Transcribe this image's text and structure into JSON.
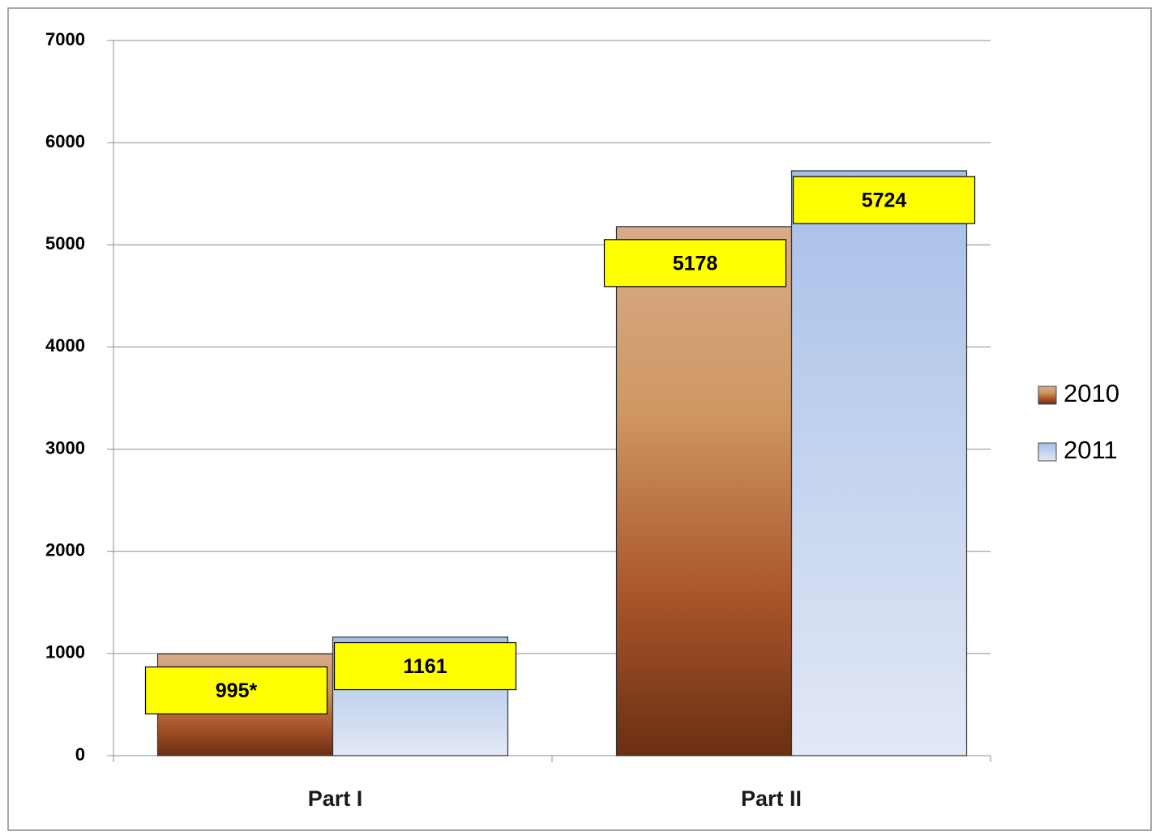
{
  "chart_data": {
    "type": "bar",
    "categories": [
      "Part I",
      "Part II"
    ],
    "series": [
      {
        "name": "2010",
        "color": "#a9552a",
        "values": [
          995,
          5178
        ],
        "value_labels": [
          "995*",
          "5178"
        ]
      },
      {
        "name": "2011",
        "color": "#a6bfe7",
        "values": [
          1161,
          5724
        ]
      }
    ],
    "ylim": [
      0,
      7000
    ],
    "yticks": [
      0,
      1000,
      2000,
      3000,
      4000,
      5000,
      6000,
      7000
    ],
    "grid": true,
    "legend": "right"
  }
}
